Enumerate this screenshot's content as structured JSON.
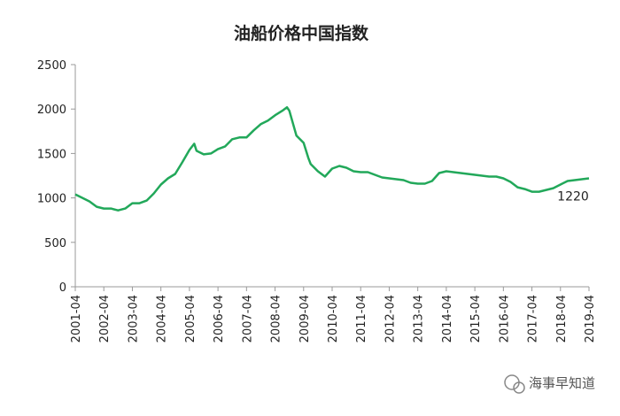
{
  "chart_data": {
    "type": "line",
    "title": "油船价格中国指数",
    "x": [
      "2001-04",
      "2001-07",
      "2001-10",
      "2002-01",
      "2002-04",
      "2002-07",
      "2002-10",
      "2003-01",
      "2003-04",
      "2003-07",
      "2003-10",
      "2004-01",
      "2004-04",
      "2004-07",
      "2004-10",
      "2005-01",
      "2005-04",
      "2005-06",
      "2005-07",
      "2005-10",
      "2006-01",
      "2006-04",
      "2006-07",
      "2006-10",
      "2007-01",
      "2007-04",
      "2007-07",
      "2007-10",
      "2008-01",
      "2008-04",
      "2008-07",
      "2008-09",
      "2008-10",
      "2009-01",
      "2009-04",
      "2009-06",
      "2009-07",
      "2009-10",
      "2010-01",
      "2010-04",
      "2010-07",
      "2010-10",
      "2011-01",
      "2011-04",
      "2011-07",
      "2011-10",
      "2012-01",
      "2012-04",
      "2012-07",
      "2012-10",
      "2013-01",
      "2013-04",
      "2013-07",
      "2013-10",
      "2014-01",
      "2014-04",
      "2014-07",
      "2014-10",
      "2015-01",
      "2015-04",
      "2015-07",
      "2015-10",
      "2016-01",
      "2016-04",
      "2016-07",
      "2016-10",
      "2017-01",
      "2017-04",
      "2017-07",
      "2017-10",
      "2018-01",
      "2018-04",
      "2018-07",
      "2018-10",
      "2019-01",
      "2019-04"
    ],
    "series": [
      {
        "name": "油船价格中国指数",
        "color": "#22a85a",
        "values": [
          1040,
          1000,
          960,
          900,
          880,
          880,
          860,
          880,
          940,
          940,
          970,
          1050,
          1150,
          1220,
          1270,
          1400,
          1540,
          1610,
          1530,
          1490,
          1500,
          1550,
          1580,
          1660,
          1680,
          1680,
          1760,
          1830,
          1870,
          1930,
          1980,
          2020,
          1980,
          1700,
          1620,
          1450,
          1380,
          1300,
          1240,
          1330,
          1360,
          1340,
          1300,
          1290,
          1290,
          1260,
          1230,
          1220,
          1210,
          1200,
          1170,
          1160,
          1160,
          1190,
          1280,
          1300,
          1290,
          1280,
          1270,
          1260,
          1250,
          1240,
          1240,
          1220,
          1180,
          1120,
          1100,
          1070,
          1070,
          1090,
          1110,
          1150,
          1190,
          1200,
          1210,
          1220
        ]
      }
    ],
    "ylim": [
      0,
      2500
    ],
    "yticks": [
      0,
      500,
      1000,
      1500,
      2000,
      2500
    ],
    "xticks": [
      "2001-04",
      "2002-04",
      "2003-04",
      "2004-04",
      "2005-04",
      "2006-04",
      "2007-04",
      "2008-04",
      "2009-04",
      "2010-04",
      "2011-04",
      "2012-04",
      "2013-04",
      "2014-04",
      "2015-04",
      "2016-04",
      "2017-04",
      "2018-04",
      "2019-04"
    ],
    "grid": false,
    "watermark": "海事早知道"
  }
}
